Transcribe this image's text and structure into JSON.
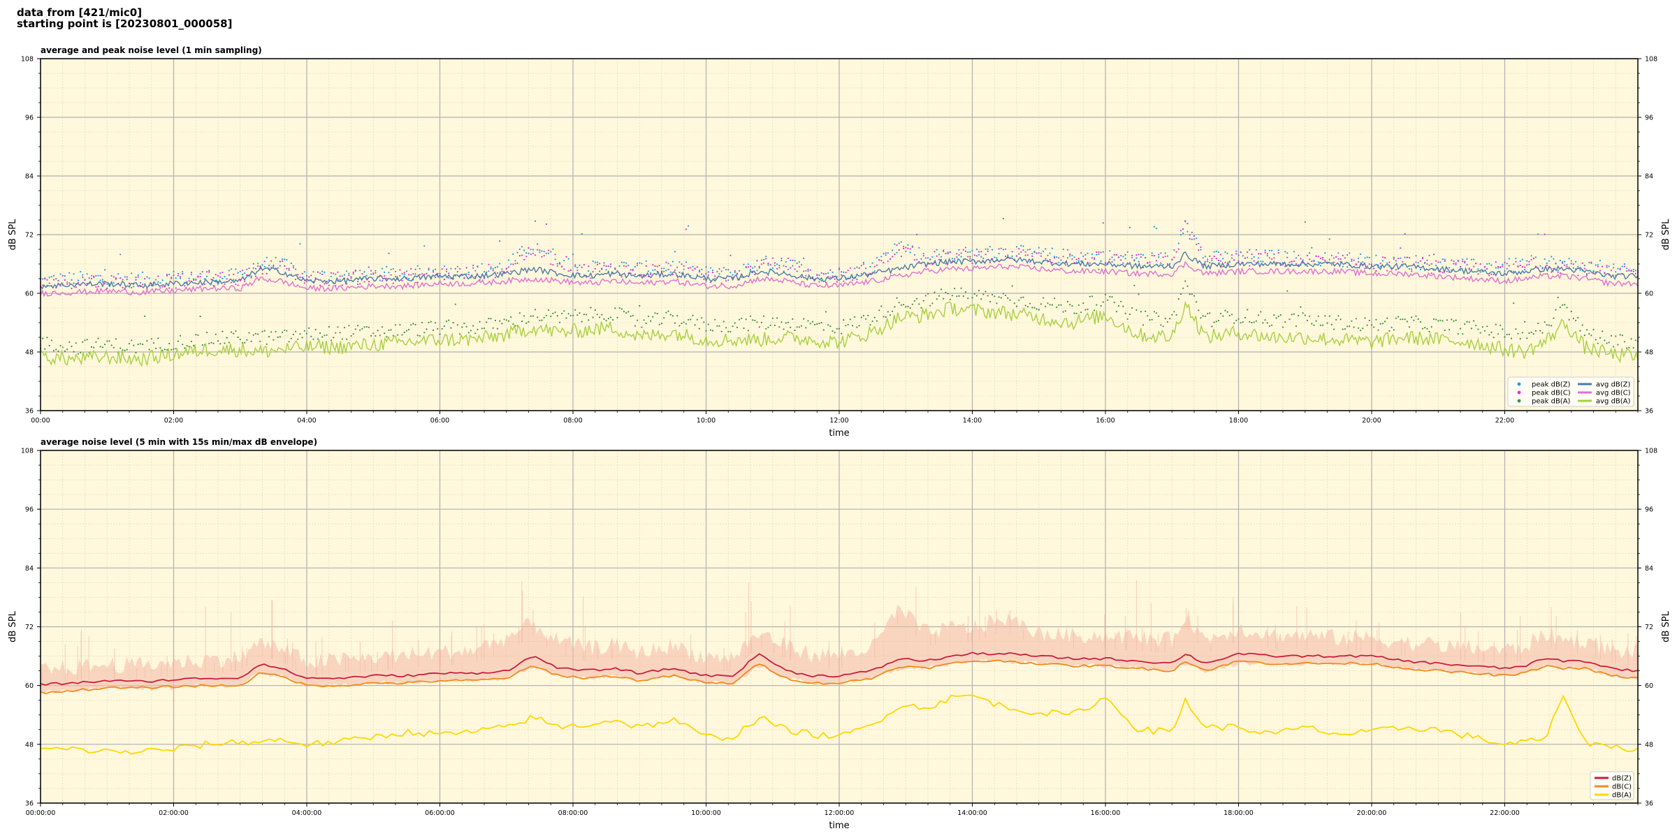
{
  "header": {
    "line1": "data from [421/mic0]",
    "line2": "starting point is [20230801_000058]"
  },
  "colors": {
    "plot_bg": "#fff8dc",
    "peak_z": "#1f9ae0",
    "peak_c": "#e030d0",
    "peak_a": "#3c8f3c",
    "avg_z": "#4d7aa8",
    "avg_c": "#e070d0",
    "avg_a": "#a8d040",
    "dbz": "#c81e3c",
    "dbc": "#f08a1e",
    "dba": "#ffd700",
    "envelope": "#f4b8a8"
  },
  "chart_data": [
    {
      "type": "line",
      "title": "average and peak noise level (1 min sampling)",
      "xlabel": "time",
      "ylabel": "dB SPL",
      "ylim": [
        36,
        108
      ],
      "xlim_hours": [
        0,
        24
      ],
      "yticks": [
        "108",
        "96",
        "84",
        "72",
        "60",
        "48",
        "36"
      ],
      "xticks": [
        "00:00",
        "02:00",
        "04:00",
        "06:00",
        "08:00",
        "10:00",
        "12:00",
        "14:00",
        "16:00",
        "18:00",
        "20:00",
        "22:00"
      ],
      "grid": true,
      "legend_position": "bottom-right",
      "legend": [
        "peak dB(Z)",
        "peak dB(C)",
        "peak dB(A)",
        "avg dB(Z)",
        "avg dB(C)",
        "avg dB(A)"
      ],
      "x_hours": [
        0,
        0.5,
        1,
        1.5,
        2,
        2.5,
        3,
        3.3,
        3.6,
        4,
        4.5,
        5,
        5.5,
        6,
        6.5,
        7,
        7.4,
        7.8,
        8.2,
        8.6,
        9,
        9.5,
        10,
        10.4,
        10.8,
        11.2,
        11.6,
        12,
        12.5,
        12.9,
        13.3,
        13.7,
        14,
        14.5,
        15,
        15.5,
        16,
        16.5,
        17,
        17.2,
        17.5,
        18,
        18.5,
        19,
        19.5,
        20,
        20.5,
        21,
        21.5,
        22,
        22.3,
        22.6,
        22.9,
        23.2,
        23.6,
        24
      ],
      "series": [
        {
          "name": "avg dB(Z)",
          "style": "line",
          "values": [
            61.5,
            61.8,
            62,
            61.6,
            62,
            62.3,
            62.5,
            65,
            64.5,
            62.5,
            62.5,
            63,
            63,
            63.5,
            63.5,
            64,
            65,
            64,
            63.5,
            64,
            63.5,
            64,
            63,
            63,
            64.5,
            64,
            63,
            63,
            64,
            65,
            66,
            66.5,
            66.5,
            67,
            66.5,
            66,
            66,
            65.5,
            65.5,
            68,
            65.5,
            66,
            66,
            66,
            66,
            65.5,
            65.5,
            65,
            64.5,
            64,
            64.5,
            65,
            65,
            64.5,
            63.5,
            63.5
          ]
        },
        {
          "name": "avg dB(C)",
          "style": "line",
          "values": [
            60,
            60.2,
            60.5,
            60.2,
            60.5,
            61,
            61,
            63,
            62.5,
            61,
            61,
            61.5,
            61.5,
            62,
            62,
            62.5,
            63,
            62.5,
            62,
            62.5,
            62,
            62.5,
            61.5,
            61.5,
            63,
            62.5,
            61.5,
            61.5,
            62.5,
            63.5,
            64.5,
            65,
            65,
            65.5,
            65,
            64.5,
            64.5,
            64,
            64,
            66,
            64,
            64.5,
            64.5,
            64.5,
            64.5,
            64,
            64,
            63.5,
            63,
            62.5,
            63,
            63.5,
            63.5,
            63,
            62,
            62
          ]
        },
        {
          "name": "avg dB(A)",
          "style": "line",
          "values": [
            47,
            46.5,
            47,
            46.5,
            47.5,
            48.5,
            48.5,
            48,
            48.5,
            49,
            49,
            49.5,
            50,
            50.5,
            50.5,
            51.5,
            53,
            52,
            52.5,
            53,
            51,
            52,
            50.5,
            50.5,
            50.5,
            51,
            50.5,
            50,
            52,
            55,
            55.5,
            57,
            56.5,
            56,
            55,
            54,
            55.5,
            51.5,
            51,
            58,
            51,
            52,
            51,
            51,
            50.5,
            50,
            51,
            50.5,
            50,
            48.5,
            48,
            50,
            54,
            49,
            47.5,
            47
          ]
        },
        {
          "name": "peak dB(Z)",
          "style": "scatter",
          "values": [
            62.5,
            63,
            63,
            62.8,
            63,
            63.5,
            63.5,
            66,
            66,
            63.5,
            63.5,
            64,
            64,
            64.5,
            64.5,
            65.5,
            70,
            67,
            65,
            65.5,
            65,
            65.5,
            64,
            64,
            66,
            66.5,
            64,
            64,
            65.5,
            70,
            67.5,
            68,
            68,
            68.5,
            68,
            67.5,
            67.5,
            67,
            67,
            75,
            67,
            67.5,
            67.5,
            67,
            67,
            66.5,
            66.5,
            66,
            65.5,
            65.5,
            66,
            66.5,
            66,
            65.5,
            64.5,
            64.5
          ]
        },
        {
          "name": "peak dB(C)",
          "style": "scatter",
          "values": [
            62,
            62.5,
            62.5,
            62.2,
            62.5,
            63,
            63,
            65.5,
            65.5,
            63,
            63,
            63.5,
            63.5,
            64,
            64,
            65,
            69,
            66.5,
            64.5,
            65,
            64.5,
            65,
            63.5,
            63.5,
            65.5,
            66,
            63.5,
            63.5,
            65,
            69,
            67,
            67.5,
            67.5,
            68,
            67.5,
            67,
            67,
            66.5,
            66.5,
            74,
            66.5,
            67,
            67,
            66.5,
            66.5,
            66,
            66,
            65.5,
            65,
            65,
            65.5,
            66,
            65.5,
            65,
            64,
            64
          ]
        },
        {
          "name": "peak dB(A)",
          "style": "scatter",
          "values": [
            50,
            49,
            49.5,
            49,
            50,
            50.5,
            51,
            51,
            51,
            51.5,
            52,
            52,
            52.5,
            53,
            53,
            54,
            55.5,
            55,
            55.5,
            56,
            54,
            55,
            53.5,
            53.5,
            54,
            54,
            53.5,
            53,
            55,
            58,
            58.5,
            60,
            59.5,
            59,
            58,
            57,
            58.5,
            55,
            54.5,
            62,
            54.5,
            55.5,
            54.5,
            54.5,
            54,
            53.5,
            54,
            53.5,
            53,
            52,
            51.5,
            53,
            57,
            52,
            50.5,
            50
          ]
        }
      ]
    },
    {
      "type": "line",
      "title": "average noise level (5 min with 15s min/max dB envelope)",
      "xlabel": "time",
      "ylabel": "dB SPL",
      "ylim": [
        36,
        108
      ],
      "xlim_hours": [
        0,
        24
      ],
      "yticks": [
        "108",
        "96",
        "84",
        "72",
        "60",
        "48",
        "36"
      ],
      "xticks": [
        "00:00:00",
        "02:00:00",
        "04:00:00",
        "06:00:00",
        "08:00:00",
        "10:00:00",
        "12:00:00",
        "14:00:00",
        "16:00:00",
        "18:00:00",
        "20:00:00",
        "22:00:00"
      ],
      "grid": true,
      "legend_position": "bottom-right",
      "legend": [
        "dB(Z)",
        "dB(C)",
        "dB(A)"
      ],
      "x_hours": [
        0,
        0.5,
        1,
        1.5,
        2,
        2.5,
        3,
        3.3,
        3.6,
        4,
        4.5,
        5,
        5.5,
        6,
        6.5,
        7,
        7.4,
        7.8,
        8.2,
        8.6,
        9,
        9.5,
        10,
        10.4,
        10.8,
        11.2,
        11.6,
        12,
        12.5,
        12.9,
        13.3,
        13.7,
        14,
        14.5,
        15,
        15.5,
        16,
        16.5,
        17,
        17.2,
        17.5,
        18,
        18.5,
        19,
        19.5,
        20,
        20.5,
        21,
        21.5,
        22,
        22.3,
        22.6,
        22.9,
        23.2,
        23.6,
        24
      ],
      "series": [
        {
          "name": "dB(Z)",
          "style": "line",
          "values": [
            60.2,
            60.5,
            61,
            60.8,
            61.2,
            61.5,
            61.5,
            64.5,
            63.5,
            61.5,
            61.5,
            62,
            62,
            62.5,
            62.5,
            63,
            66,
            63.5,
            63,
            63.5,
            62.5,
            63.5,
            62,
            62,
            66.5,
            63,
            62,
            62,
            63,
            65.5,
            65,
            66,
            66.5,
            66.5,
            66,
            65.5,
            65.5,
            65,
            64.5,
            66.5,
            64.5,
            66.5,
            66,
            66,
            66,
            66,
            65,
            64.5,
            64,
            63.5,
            64,
            65.5,
            65,
            65,
            63.5,
            63
          ]
        },
        {
          "name": "dB(C)",
          "style": "line",
          "values": [
            58.5,
            59,
            59.5,
            59.5,
            59.8,
            60,
            60,
            62.5,
            62,
            60,
            60,
            60.5,
            60.5,
            61,
            61,
            61.5,
            64,
            62,
            61.5,
            62,
            61,
            62,
            60.5,
            60.5,
            64.5,
            61.5,
            60.5,
            60.5,
            61.5,
            64,
            63.5,
            64.5,
            65,
            65,
            64.5,
            64,
            64,
            63.5,
            63,
            65,
            63,
            65,
            64.5,
            64.5,
            64.5,
            64.5,
            63.5,
            63,
            62.5,
            62,
            62.5,
            64,
            63.5,
            63.5,
            62,
            61.5
          ]
        },
        {
          "name": "dB(A)",
          "style": "line",
          "values": [
            47,
            47,
            46.5,
            46.5,
            47,
            48,
            48.5,
            48.5,
            49,
            48,
            48.5,
            49.5,
            50.5,
            50,
            50.5,
            51.5,
            53.5,
            51.5,
            52,
            53,
            51.5,
            53,
            49.5,
            49.5,
            53.5,
            51,
            50,
            49.5,
            52,
            56,
            55.5,
            57.5,
            58,
            55.5,
            54.5,
            54,
            57.5,
            51,
            50.5,
            57,
            51.5,
            51.5,
            50,
            51.5,
            50,
            50.5,
            51.5,
            51,
            49.5,
            48,
            48.5,
            49,
            58,
            48.5,
            47.5,
            47
          ]
        },
        {
          "name": "envelope",
          "style": "band",
          "lower": [
            59,
            59.5,
            60,
            59.8,
            60,
            60.5,
            60.5,
            63,
            62.5,
            60.5,
            60.5,
            61,
            61,
            61.5,
            61.5,
            62,
            64.5,
            62.5,
            62,
            62.5,
            61.5,
            62.5,
            61,
            61,
            64.5,
            62,
            61,
            61,
            62,
            64,
            64,
            65,
            65.5,
            65.5,
            65,
            64.5,
            64.5,
            64,
            63.5,
            65,
            63.5,
            65,
            65,
            65,
            65,
            65,
            64,
            63.5,
            63,
            62.5,
            63,
            64.5,
            64,
            64,
            62.5,
            62
          ],
          "upper": [
            62.5,
            63,
            63.5,
            63.5,
            64,
            64.5,
            65,
            68,
            67,
            64,
            64.5,
            65,
            65.5,
            66,
            66.5,
            69,
            72,
            68,
            67,
            67.5,
            66,
            67.5,
            65,
            65,
            70,
            67.5,
            65.5,
            65.5,
            67,
            75,
            70,
            71,
            71,
            73,
            70,
            69.5,
            69.5,
            69,
            68.5,
            74,
            68.5,
            71,
            69.5,
            69.5,
            69,
            69,
            68,
            67.5,
            67,
            66.5,
            67,
            70,
            68.5,
            68.5,
            66.5,
            66
          ]
        }
      ]
    }
  ]
}
